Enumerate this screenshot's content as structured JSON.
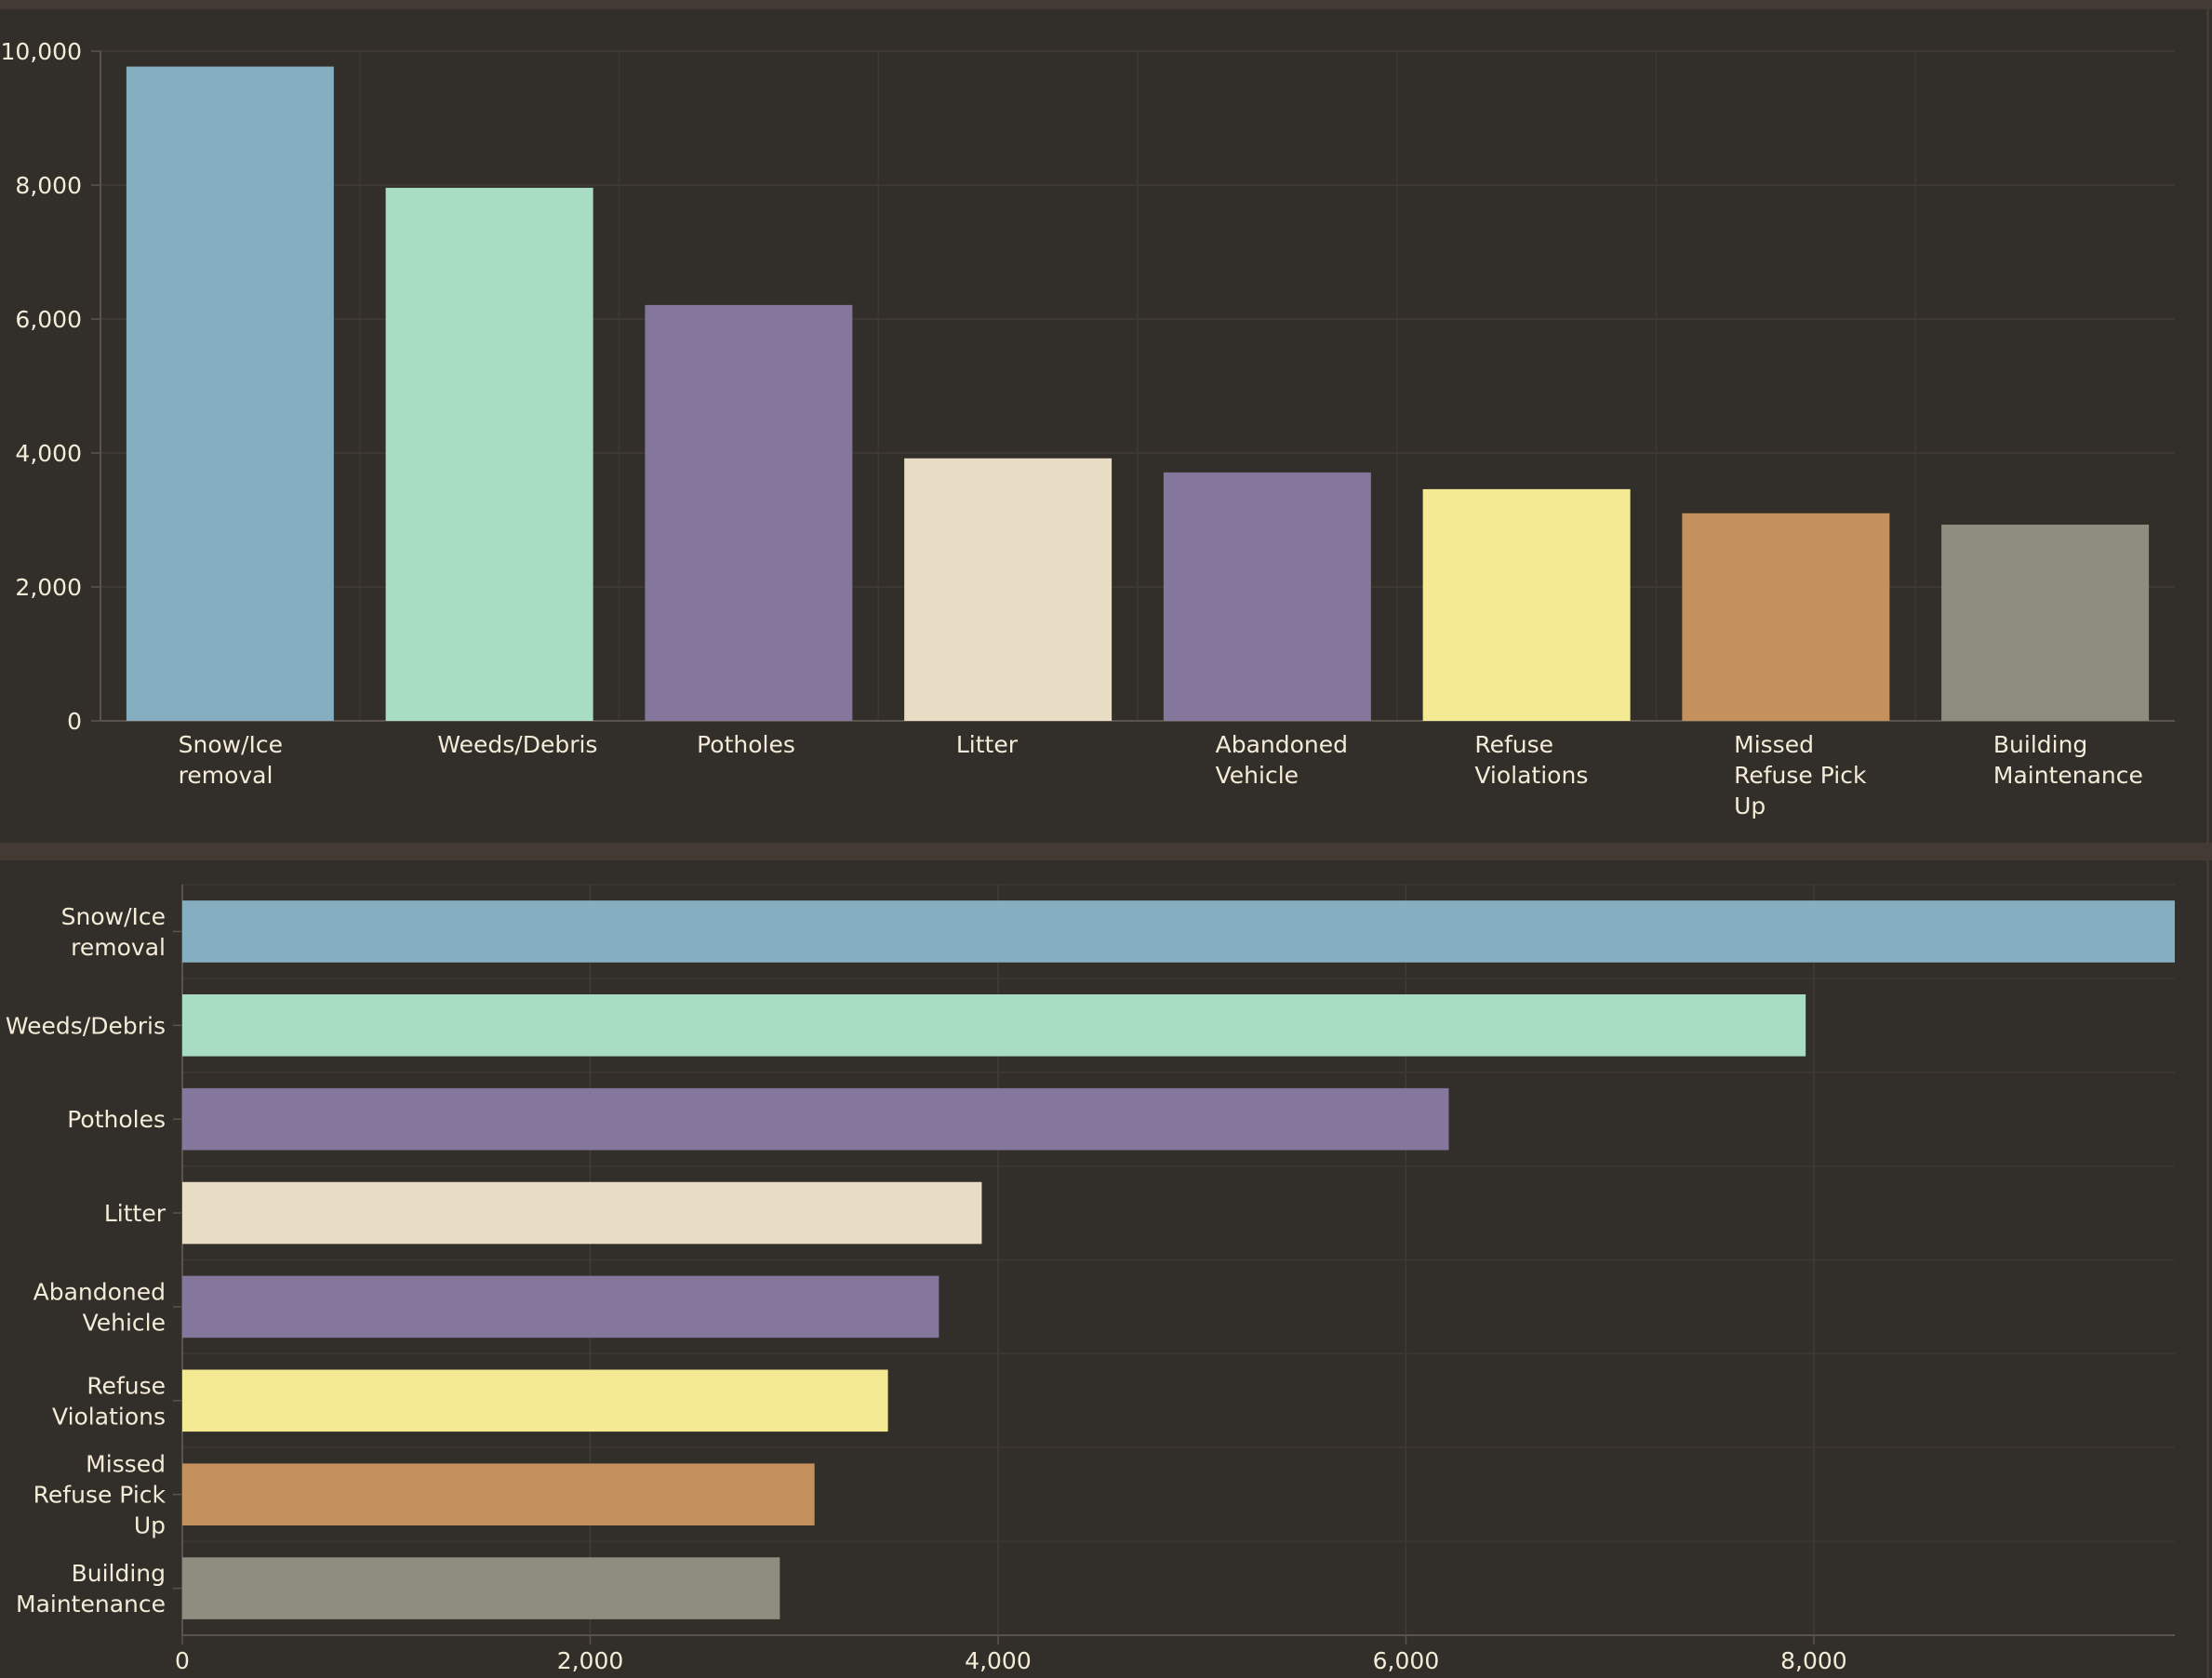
{
  "chart_data": [
    {
      "type": "bar",
      "orientation": "vertical",
      "categories": [
        "Snow/Ice removal",
        "Weeds/Debris",
        "Potholes",
        "Litter",
        "Abandoned Vehicle",
        "Refuse Violations",
        "Missed Refuse Pick Up",
        "Building Maintenance"
      ],
      "values": [
        9770,
        7960,
        6210,
        3920,
        3710,
        3460,
        3100,
        2930
      ],
      "colors": [
        "#85aec0",
        "#a8ddc4",
        "#85769c",
        "#e8dcc5",
        "#85769c",
        "#f4ea94",
        "#c4915c",
        "#8e8e80"
      ],
      "ylim": [
        0,
        10000
      ],
      "yticks": [
        "0",
        "2,000",
        "4,000",
        "6,000",
        "8,000",
        "10,000"
      ],
      "grid": true,
      "title": "",
      "xlabel": "",
      "ylabel": ""
    },
    {
      "type": "bar",
      "orientation": "horizontal",
      "categories": [
        "Snow/Ice removal",
        "Weeds/Debris",
        "Potholes",
        "Litter",
        "Abandoned Vehicle",
        "Refuse Violations",
        "Missed Refuse Pick Up",
        "Building Maintenance"
      ],
      "values": [
        9770,
        7960,
        6210,
        3920,
        3710,
        3460,
        3100,
        2930
      ],
      "colors": [
        "#85aec0",
        "#a8ddc4",
        "#85769c",
        "#e8dcc5",
        "#85769c",
        "#f4ea94",
        "#c4915c",
        "#8e8e80"
      ],
      "xlim": [
        0,
        9770
      ],
      "xticks": [
        "0",
        "2,000",
        "4,000",
        "6,000",
        "8,000"
      ],
      "grid": true,
      "title": "",
      "xlabel": "",
      "ylabel": ""
    }
  ]
}
